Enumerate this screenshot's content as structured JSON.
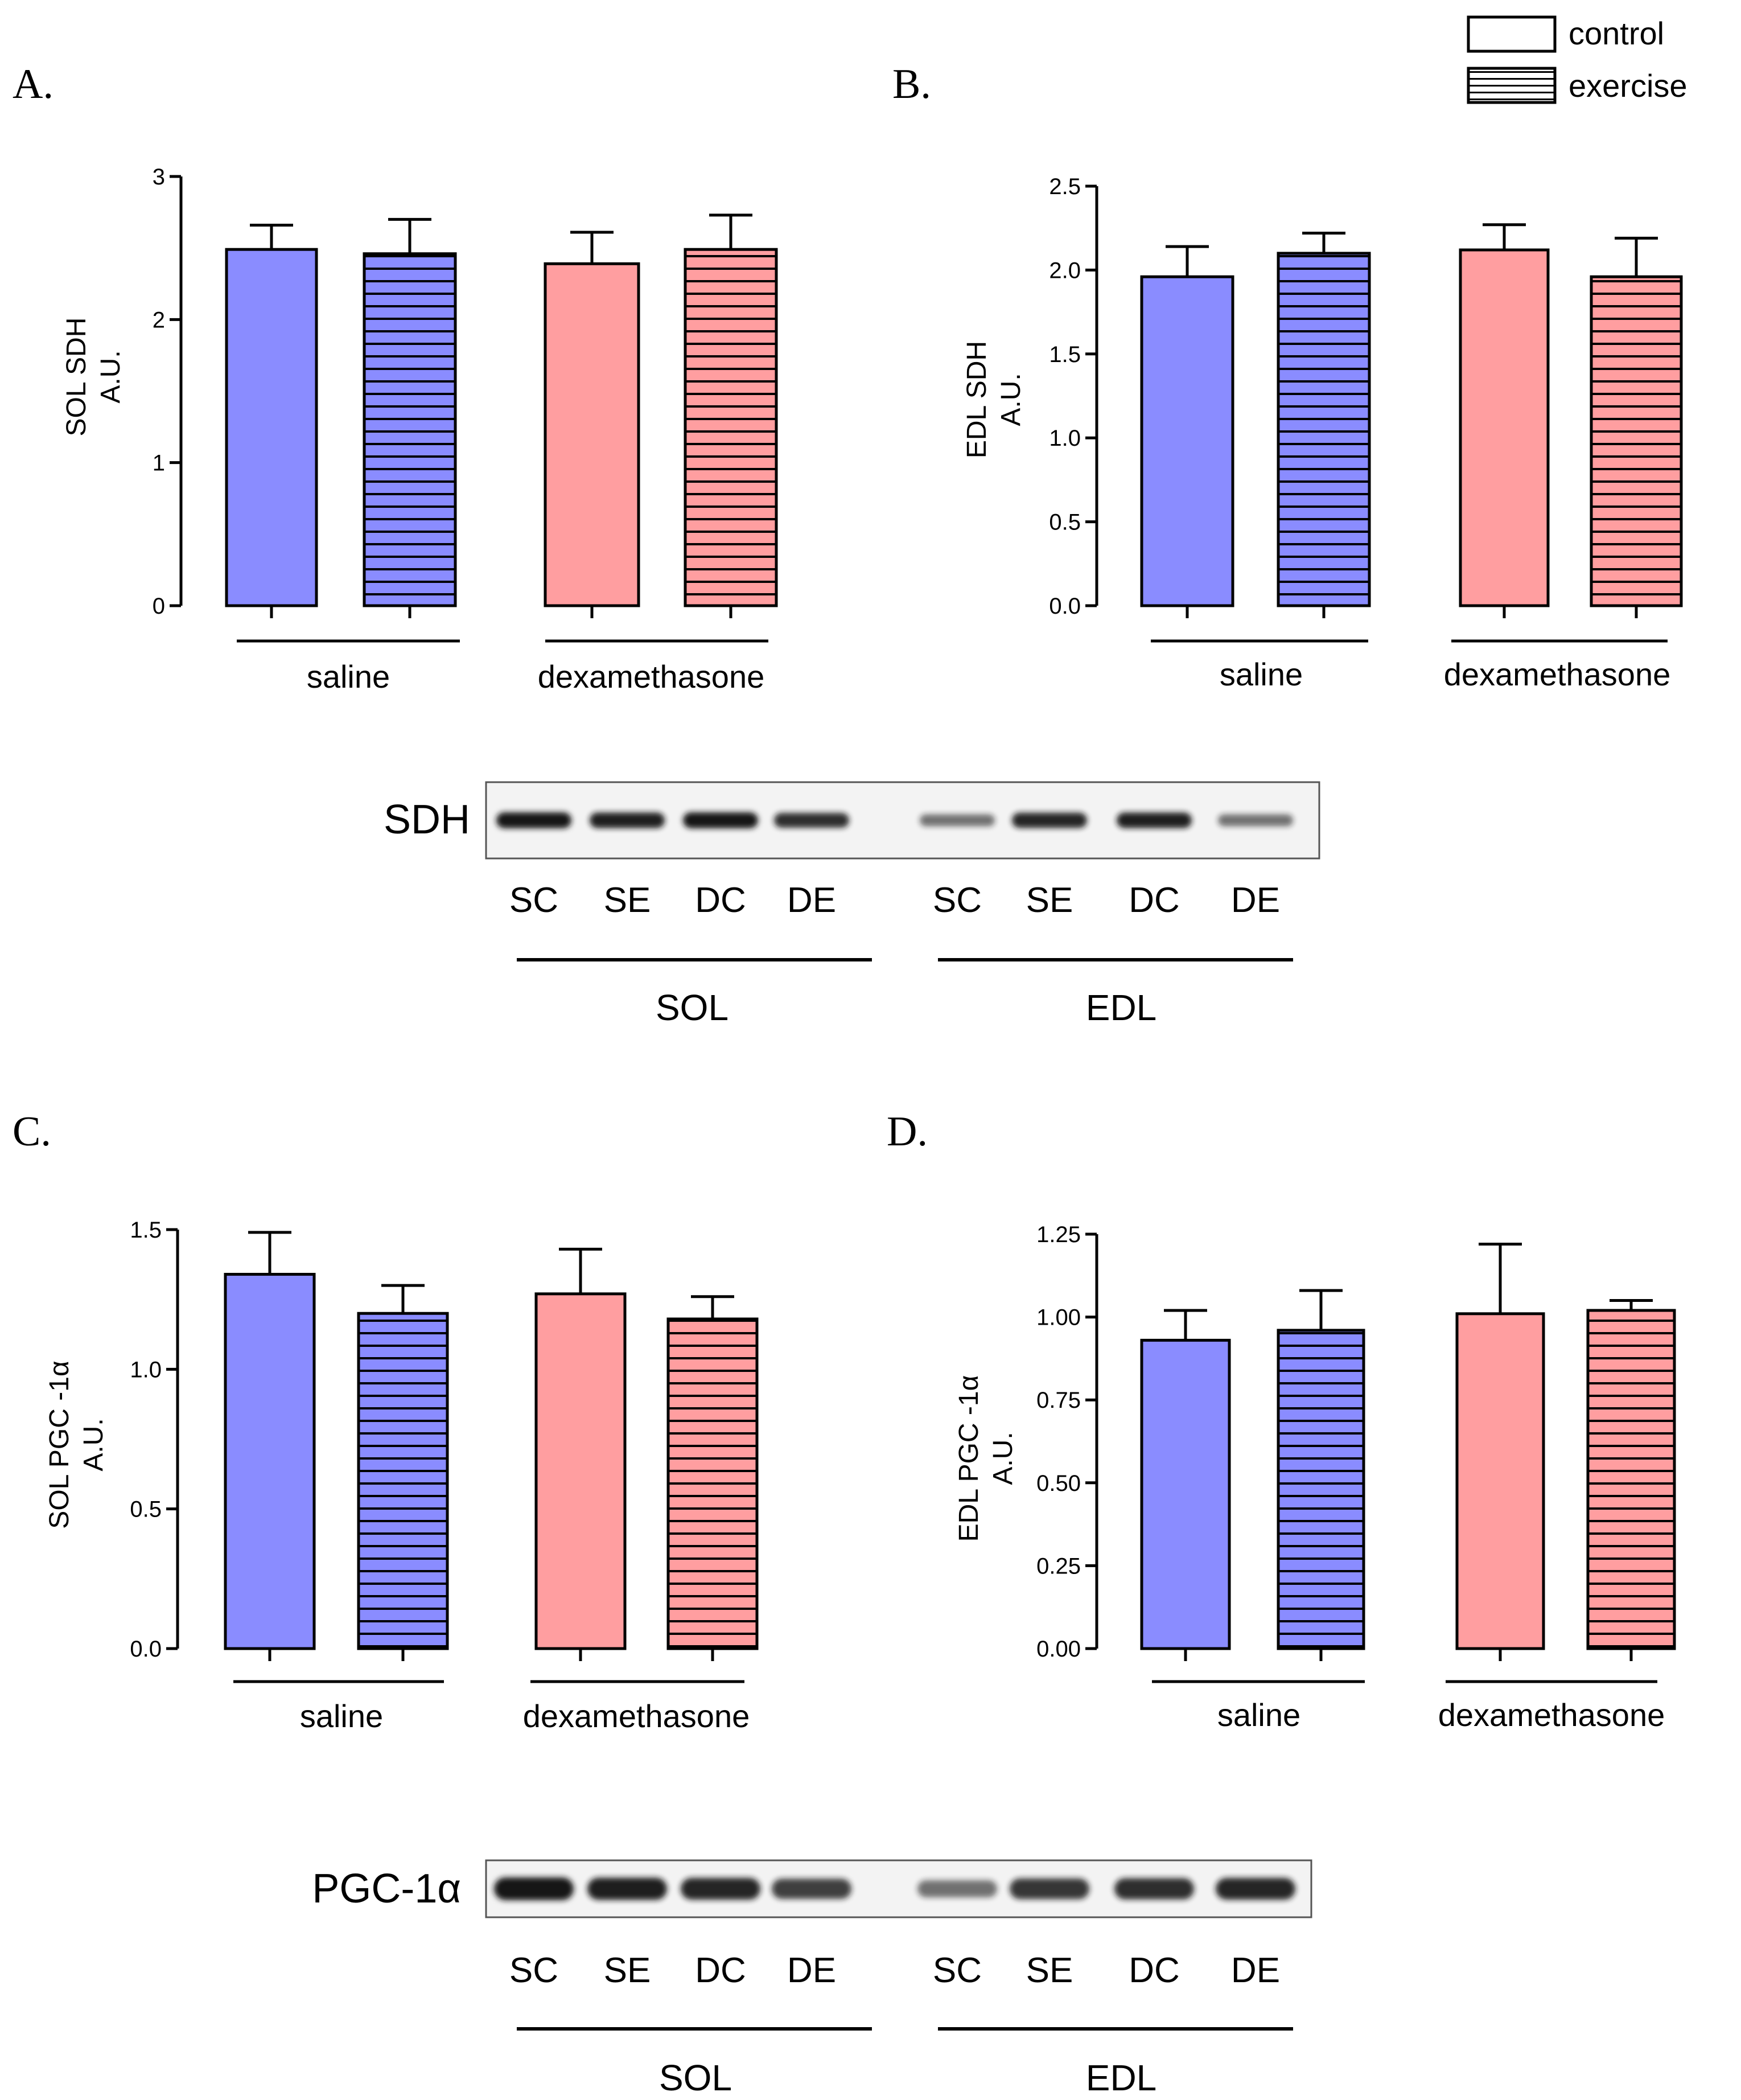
{
  "legend": {
    "items": [
      {
        "label": "control",
        "pattern": "solid"
      },
      {
        "label": "exercise",
        "pattern": "hlines"
      }
    ]
  },
  "colors": {
    "saline": "#8a8cff",
    "dexamethasone": "#ff9ea0",
    "stroke": "#000000",
    "blot_bg": "#f3f3f3",
    "band": "#151515"
  },
  "chart_data": [
    {
      "id": "A",
      "type": "bar",
      "panel_label": "A.",
      "ylabel": [
        "SOL SDH",
        "A.U."
      ],
      "ylim": [
        0,
        3
      ],
      "yticks": [
        0,
        1,
        2,
        3
      ],
      "ytick_labels": [
        "0",
        "1",
        "2",
        "3"
      ],
      "groups": [
        "saline",
        "dexamethasone"
      ],
      "series": [
        {
          "name": "control",
          "values": [
            2.49,
            2.39
          ],
          "errors": [
            0.17,
            0.22
          ]
        },
        {
          "name": "exercise",
          "values": [
            2.46,
            2.49
          ],
          "errors": [
            0.24,
            0.24
          ]
        }
      ]
    },
    {
      "id": "B",
      "type": "bar",
      "panel_label": "B.",
      "ylabel": [
        "EDL SDH",
        "A.U."
      ],
      "ylim": [
        0,
        2.5
      ],
      "yticks": [
        0,
        0.5,
        1.0,
        1.5,
        2.0,
        2.5
      ],
      "ytick_labels": [
        "0.0",
        "0.5",
        "1.0",
        "1.5",
        "2.0",
        "2.5"
      ],
      "groups": [
        "saline",
        "dexamethasone"
      ],
      "series": [
        {
          "name": "control",
          "values": [
            1.96,
            2.12
          ],
          "errors": [
            0.18,
            0.15
          ]
        },
        {
          "name": "exercise",
          "values": [
            2.1,
            1.96
          ],
          "errors": [
            0.12,
            0.23
          ]
        }
      ]
    },
    {
      "id": "C",
      "type": "bar",
      "panel_label": "C.",
      "ylabel": [
        "SOL PGC -1α",
        "A.U."
      ],
      "ylim": [
        0,
        1.5
      ],
      "yticks": [
        0,
        0.5,
        1.0,
        1.5
      ],
      "ytick_labels": [
        "0.0",
        "0.5",
        "1.0",
        "1.5"
      ],
      "groups": [
        "saline",
        "dexamethasone"
      ],
      "series": [
        {
          "name": "control",
          "values": [
            1.34,
            1.27
          ],
          "errors": [
            0.15,
            0.16
          ]
        },
        {
          "name": "exercise",
          "values": [
            1.2,
            1.18
          ],
          "errors": [
            0.1,
            0.08
          ]
        }
      ]
    },
    {
      "id": "D",
      "type": "bar",
      "panel_label": "D.",
      "ylabel": [
        "EDL PGC -1α",
        "A.U."
      ],
      "ylim": [
        0,
        1.25
      ],
      "yticks": [
        0,
        0.25,
        0.5,
        0.75,
        1.0,
        1.25
      ],
      "ytick_labels": [
        "0.00",
        "0.25",
        "0.50",
        "0.75",
        "1.00",
        "1.25"
      ],
      "groups": [
        "saline",
        "dexamethasone"
      ],
      "series": [
        {
          "name": "control",
          "values": [
            0.93,
            1.01
          ],
          "errors": [
            0.09,
            0.21
          ]
        },
        {
          "name": "exercise",
          "values": [
            0.96,
            1.02
          ],
          "errors": [
            0.12,
            0.03
          ]
        }
      ]
    }
  ],
  "blots": [
    {
      "id": "sdh-blot",
      "label": "SDH",
      "lanes": [
        "SC",
        "SE",
        "DC",
        "DE",
        "SC",
        "SE",
        "DC",
        "DE"
      ],
      "band_intensity": [
        1.0,
        0.95,
        1.0,
        0.85,
        0.45,
        0.9,
        0.95,
        0.45
      ],
      "groups": [
        "SOL",
        "EDL"
      ]
    },
    {
      "id": "pgc-blot",
      "label": "PGC-1α",
      "lanes": [
        "SC",
        "SE",
        "DC",
        "DE",
        "SC",
        "SE",
        "DC",
        "DE"
      ],
      "band_intensity": [
        1.0,
        0.95,
        0.9,
        0.75,
        0.45,
        0.8,
        0.85,
        0.9
      ],
      "groups": [
        "SOL",
        "EDL"
      ]
    }
  ]
}
